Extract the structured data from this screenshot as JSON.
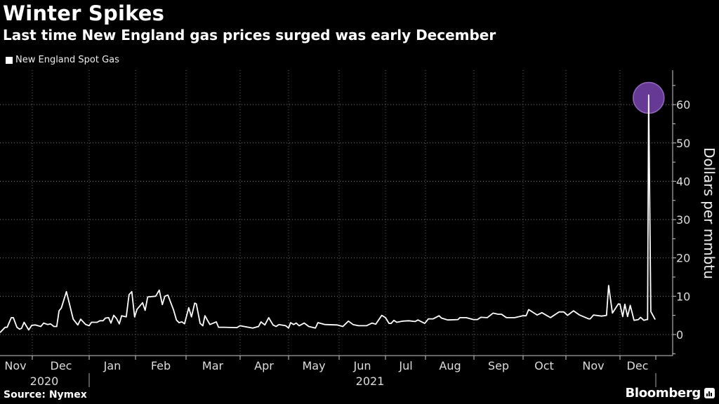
{
  "title": "Winter Spikes",
  "subtitle": "Last time New England gas prices surged was early December",
  "source": "Source: Nymex",
  "brand": "Bloomberg",
  "colors": {
    "line": "#ffffff",
    "highlight": "#6b3d9c",
    "background": "#000000"
  },
  "chart_data": {
    "type": "line",
    "title": "Winter Spikes",
    "xlabel": "",
    "ylabel": "Dollars per mmbtu",
    "x_unit": "months since 2020-11-01",
    "ylim": [
      -5.5,
      69
    ],
    "yticks": [
      0,
      10,
      20,
      30,
      40,
      50,
      60
    ],
    "grid": true,
    "legend": {
      "position": "top-left",
      "entries": [
        "New England Spot Gas"
      ]
    },
    "month_labels": [
      "Nov",
      "Dec",
      "Jan",
      "Feb",
      "Mar",
      "Apr",
      "May",
      "Jun",
      "Jul",
      "Aug",
      "Sep",
      "Oct",
      "Nov",
      "Dec"
    ],
    "year_labels": [
      {
        "label": "2020",
        "from": 0,
        "to": 2
      },
      {
        "label": "2021",
        "from": 2,
        "to": 14
      }
    ],
    "highlight": {
      "x": 13.53,
      "y": 62.5
    },
    "series": [
      {
        "name": "New England Spot Gas",
        "x": [
          0.37,
          0.47,
          0.51,
          0.59,
          0.63,
          0.7,
          0.75,
          0.79,
          0.84,
          0.93,
          0.99,
          1.05,
          1.15,
          1.2,
          1.27,
          1.32,
          1.38,
          1.43,
          1.47,
          1.51,
          1.6,
          1.72,
          1.8,
          1.85,
          1.94,
          2.0,
          2.05,
          2.17,
          2.23,
          2.3,
          2.35,
          2.42,
          2.47,
          2.53,
          2.59,
          2.65,
          2.7,
          2.8,
          2.86,
          2.92,
          2.98,
          3.03,
          3.14,
          3.19,
          3.24,
          3.4,
          3.47,
          3.53,
          3.58,
          3.64,
          3.75,
          3.81,
          3.86,
          3.92,
          3.97,
          4.05,
          4.1,
          4.16,
          4.19,
          4.26,
          4.31,
          4.35,
          4.44,
          4.56,
          4.6,
          4.71,
          4.94,
          5.0,
          5.12,
          5.26,
          5.38,
          5.43,
          5.51,
          5.59,
          5.68,
          5.74,
          5.8,
          5.94,
          6.0,
          6.04,
          6.1,
          6.15,
          6.21,
          6.31,
          6.4,
          6.53,
          6.58,
          6.72,
          6.96,
          7.08,
          7.2,
          7.3,
          7.42,
          7.59,
          7.71,
          7.79,
          7.92,
          8.0,
          8.09,
          8.14,
          8.21,
          8.28,
          8.44,
          8.58,
          8.74,
          8.81,
          8.98,
          9.06,
          9.16,
          9.28,
          9.33,
          9.46,
          9.67,
          9.71,
          9.84,
          9.99,
          10.07,
          10.14,
          10.27,
          10.39,
          10.49,
          10.56,
          10.66,
          10.83,
          10.99,
          11.07,
          11.13,
          11.33,
          11.44,
          11.64,
          11.84,
          11.95,
          12.03,
          12.14,
          12.25,
          12.42,
          12.45,
          12.51,
          12.66,
          12.75,
          12.79,
          12.86,
          12.97,
          13.0,
          13.05,
          13.09,
          13.14,
          13.19,
          13.26,
          13.34,
          13.38,
          13.44,
          13.49,
          13.51,
          13.53,
          13.57,
          13.65
        ],
        "y": [
          0.5,
          1.9,
          1.9,
          4.4,
          4.4,
          1.9,
          1.4,
          1.6,
          3.2,
          1.2,
          2.4,
          2.5,
          2.1,
          3.0,
          2.6,
          2.8,
          2.1,
          2.1,
          6.2,
          6.9,
          11.2,
          4.0,
          2.5,
          4.0,
          2.6,
          2.3,
          3.2,
          3.2,
          3.6,
          3.6,
          4.3,
          4.4,
          3.0,
          5.0,
          4.2,
          2.8,
          4.9,
          4.6,
          10.4,
          11.2,
          4.6,
          6.6,
          8.3,
          6.3,
          9.8,
          10.0,
          11.6,
          7.8,
          10.0,
          10.3,
          6.5,
          3.8,
          3.1,
          3.3,
          2.8,
          7.0,
          4.6,
          8.2,
          8.0,
          2.9,
          2.3,
          4.9,
          2.6,
          3.3,
          1.9,
          1.9,
          1.8,
          2.3,
          2.0,
          1.7,
          2.1,
          3.3,
          2.5,
          4.4,
          2.5,
          2.1,
          2.6,
          2.3,
          1.7,
          3.1,
          2.6,
          3.0,
          2.3,
          3.0,
          2.1,
          1.7,
          3.1,
          2.6,
          2.5,
          2.1,
          3.5,
          2.6,
          2.3,
          2.3,
          3.0,
          2.7,
          5.0,
          4.4,
          2.9,
          2.9,
          3.7,
          3.2,
          3.5,
          3.6,
          3.4,
          3.8,
          2.9,
          4.1,
          4.1,
          4.9,
          4.3,
          3.8,
          3.9,
          4.4,
          4.4,
          3.9,
          3.9,
          4.5,
          4.4,
          5.6,
          5.3,
          5.3,
          4.4,
          4.4,
          4.9,
          4.9,
          6.5,
          5.1,
          5.7,
          4.4,
          5.9,
          5.9,
          5.0,
          6.2,
          5.1,
          4.1,
          4.1,
          5.1,
          4.8,
          5.0,
          12.8,
          5.6,
          8.0,
          7.9,
          4.7,
          7.9,
          4.7,
          7.6,
          3.7,
          3.9,
          4.5,
          3.7,
          3.9,
          3.9,
          62.5,
          6.0,
          3.9
        ]
      }
    ]
  }
}
